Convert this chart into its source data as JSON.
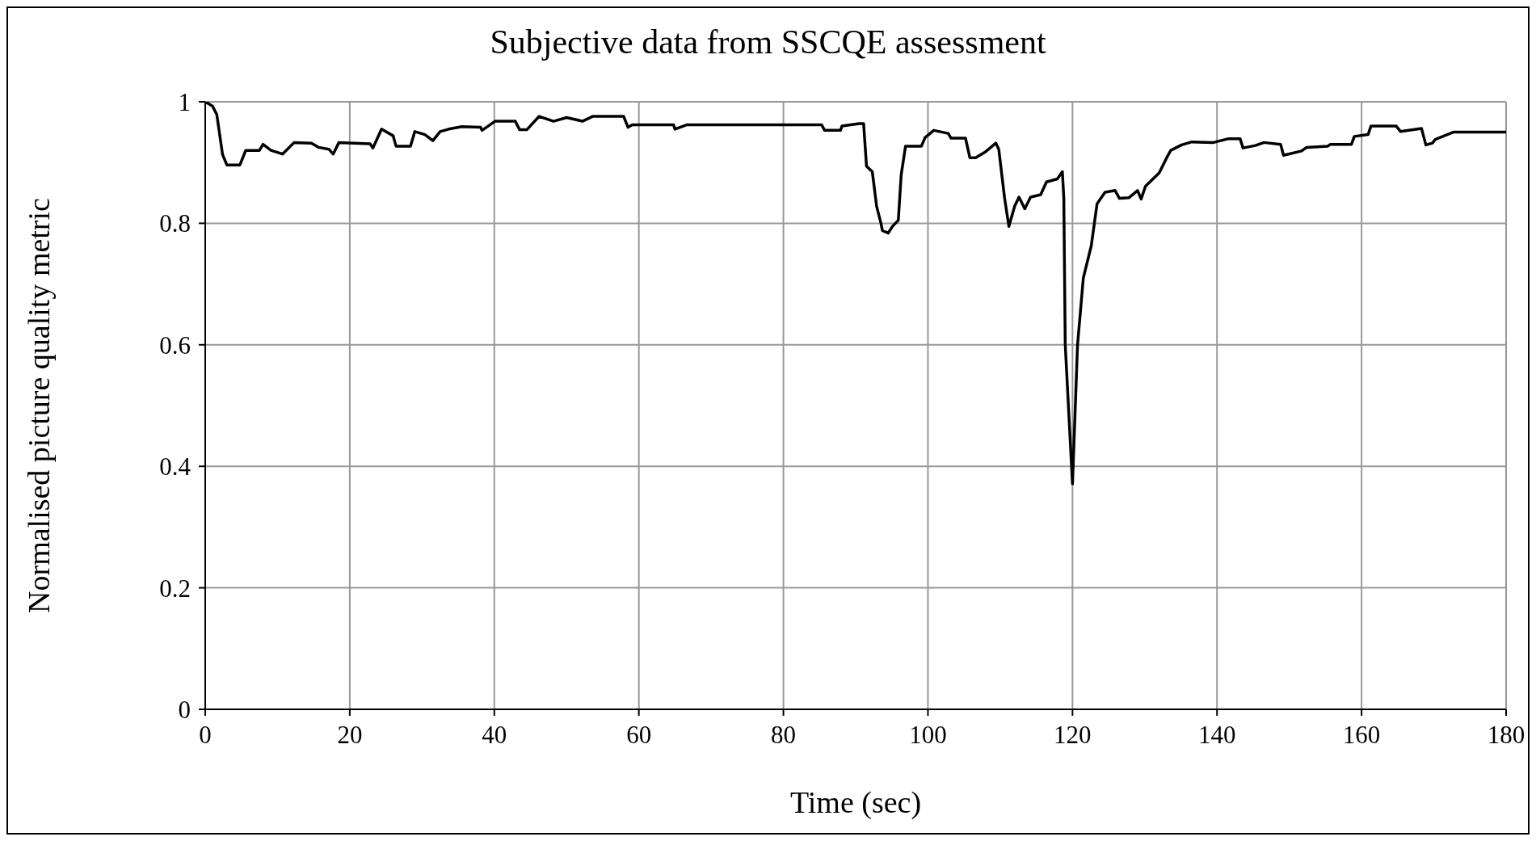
{
  "chart_data": {
    "type": "line",
    "title": "Subjective data from SSCQE assessment",
    "xlabel": "Time (sec)",
    "ylabel": "Normalised picture quality metric",
    "xlim": [
      0,
      180
    ],
    "xticks": [
      0,
      20,
      40,
      60,
      80,
      100,
      120,
      140,
      160,
      180
    ],
    "ylim": [
      0,
      1
    ],
    "yticks": [
      0,
      0.2,
      0.4,
      0.6,
      0.8,
      1
    ],
    "grid": true,
    "marker": "none",
    "line_style": "solid",
    "series": [
      {
        "color": "#000000",
        "x": [
          0,
          1,
          1.6,
          2.4,
          3,
          4.8,
          5.6,
          7.5,
          8,
          9.1,
          10.7,
          12.3,
          14.7,
          15.7,
          17.1,
          17.7,
          18.5,
          22.8,
          23.2,
          24.4,
          26,
          26.4,
          28.4,
          29,
          30.4,
          31.5,
          32.5,
          33.7,
          35.5,
          38.1,
          38.3,
          40.1,
          42.9,
          43.5,
          44.5,
          46.2,
          48.2,
          50,
          52.2,
          53.6,
          57.9,
          58.5,
          59.1,
          64.8,
          65,
          66.6,
          85.3,
          85.7,
          87.9,
          88.1,
          90.5,
          91.1,
          91.5,
          92.3,
          92.9,
          93.5,
          93.7,
          94.5,
          95.1,
          95.9,
          96.3,
          96.9,
          99.1,
          99.6,
          100.8,
          102.8,
          103.2,
          105.2,
          105.8,
          106.6,
          108,
          109.4,
          109.8,
          110.6,
          111.2,
          112,
          112.6,
          113.4,
          114.2,
          115.6,
          116.4,
          117.9,
          118.6,
          118.8,
          119,
          120,
          120.7,
          121.5,
          122.6,
          123.4,
          124.5,
          125.9,
          126.5,
          127.8,
          129,
          129.5,
          130.1,
          132,
          133,
          133.6,
          135.1,
          136.5,
          139.5,
          141.5,
          143.2,
          143.6,
          145.3,
          146.5,
          148.8,
          149.2,
          151.7,
          152.4,
          155.3,
          155.7,
          158.6,
          159,
          160.9,
          161.3,
          164.8,
          165.4,
          168.3,
          168.9,
          169.8,
          170.2,
          172.7,
          180
        ],
        "values": [
          1,
          0.993,
          0.979,
          0.913,
          0.896,
          0.896,
          0.92,
          0.92,
          0.93,
          0.92,
          0.914,
          0.933,
          0.932,
          0.925,
          0.922,
          0.914,
          0.933,
          0.931,
          0.924,
          0.955,
          0.944,
          0.927,
          0.927,
          0.951,
          0.946,
          0.936,
          0.951,
          0.955,
          0.959,
          0.958,
          0.953,
          0.968,
          0.968,
          0.954,
          0.954,
          0.976,
          0.968,
          0.974,
          0.968,
          0.976,
          0.976,
          0.958,
          0.962,
          0.962,
          0.955,
          0.962,
          0.962,
          0.953,
          0.953,
          0.96,
          0.964,
          0.964,
          0.894,
          0.885,
          0.828,
          0.8,
          0.788,
          0.784,
          0.795,
          0.805,
          0.88,
          0.927,
          0.927,
          0.941,
          0.953,
          0.948,
          0.94,
          0.94,
          0.908,
          0.908,
          0.918,
          0.932,
          0.922,
          0.842,
          0.795,
          0.828,
          0.843,
          0.824,
          0.843,
          0.847,
          0.868,
          0.873,
          0.885,
          0.842,
          0.6,
          0.371,
          0.6,
          0.71,
          0.763,
          0.832,
          0.851,
          0.854,
          0.841,
          0.842,
          0.854,
          0.84,
          0.861,
          0.883,
          0.907,
          0.92,
          0.929,
          0.934,
          0.933,
          0.939,
          0.939,
          0.924,
          0.928,
          0.933,
          0.93,
          0.912,
          0.919,
          0.925,
          0.927,
          0.93,
          0.93,
          0.943,
          0.946,
          0.96,
          0.96,
          0.951,
          0.956,
          0.929,
          0.932,
          0.938,
          0.95,
          0.95
        ]
      }
    ]
  }
}
